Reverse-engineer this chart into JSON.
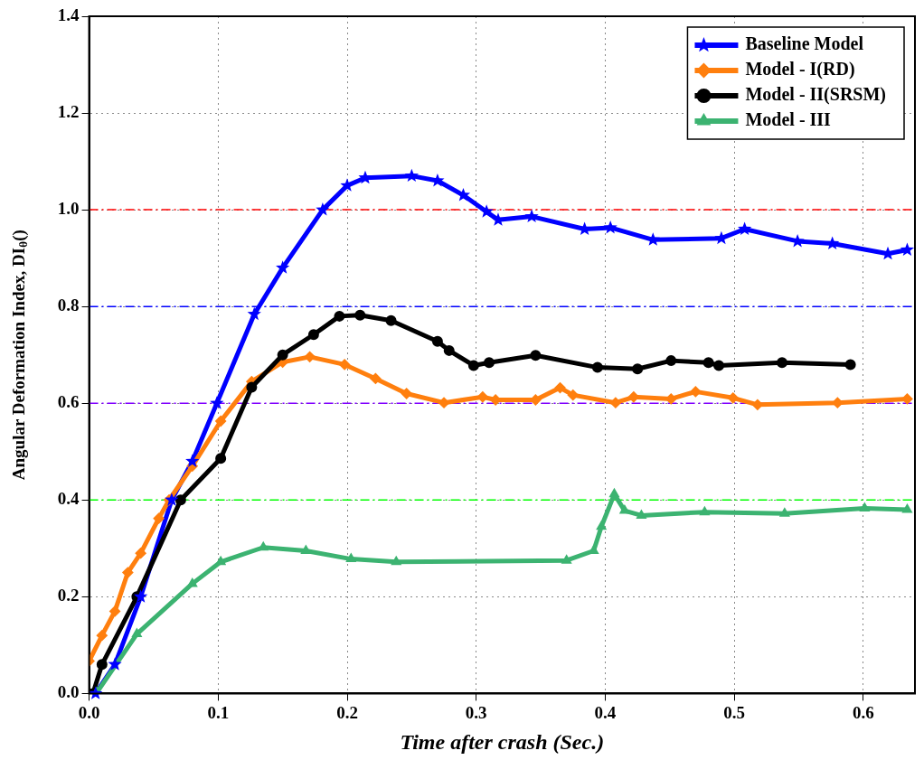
{
  "chart_data": {
    "type": "line",
    "xlabel": "Time after crash (Sec.)",
    "ylabel": "Angular Deformation Index, DI$_{θ}$()",
    "xlim": [
      0,
      0.64
    ],
    "xticks": [
      {
        "value": 0,
        "label": "0.0"
      },
      0.1,
      0.2,
      0.3,
      0.4,
      0.5,
      0.6
    ],
    "ylim": [
      0,
      1.4
    ],
    "yticks": [
      {
        "value": 0,
        "label": "0.0"
      },
      0.2,
      0.4,
      0.6,
      0.8,
      {
        "value": 1,
        "label": "1.0"
      },
      1.2,
      1.4
    ],
    "grid": true,
    "legend": "top right",
    "line_style": "solid",
    "ref_lines": [
      {
        "axis": "y",
        "value": 1,
        "color": "#ff0000",
        "line_style": "dashed"
      },
      {
        "axis": "y",
        "value": 0.8,
        "color": "#0000ff",
        "line_style": "dashed"
      },
      {
        "axis": "y",
        "value": 0.6,
        "color": "#8000ff",
        "line_style": "dashed"
      },
      {
        "axis": "y",
        "value": 0.4,
        "color": "#00ff00",
        "line_style": "dashed"
      }
    ],
    "series": [
      {
        "name": "Baseline Model",
        "color": "#0000ff",
        "marker": "star",
        "x": [
          0.005,
          0.02,
          0.04,
          0.064,
          0.08,
          0.099,
          0.128,
          0.15,
          0.181,
          0.2,
          0.214,
          0.25,
          0.27,
          0.29,
          0.308,
          0.317,
          0.343,
          0.384,
          0.404,
          0.437,
          0.49,
          0.508,
          0.549,
          0.576,
          0.619,
          0.634
        ],
        "values": [
          0,
          0.06,
          0.2,
          0.4,
          0.48,
          0.6,
          0.784,
          0.88,
          1.0,
          1.05,
          1.066,
          1.07,
          1.06,
          1.03,
          0.996,
          0.979,
          0.986,
          0.96,
          0.963,
          0.938,
          0.941,
          0.96,
          0.935,
          0.93,
          0.909,
          0.917
        ]
      },
      {
        "name": "Model - I(RD)",
        "color": "#ff7f0e",
        "marker": "diamond",
        "x": [
          0,
          0.01,
          0.02,
          0.03,
          0.04,
          0.054,
          0.062,
          0.08,
          0.102,
          0.126,
          0.15,
          0.171,
          0.198,
          0.222,
          0.246,
          0.275,
          0.305,
          0.315,
          0.346,
          0.365,
          0.375,
          0.408,
          0.422,
          0.451,
          0.47,
          0.499,
          0.518,
          0.58,
          0.634
        ],
        "values": [
          0.067,
          0.12,
          0.17,
          0.25,
          0.29,
          0.362,
          0.4,
          0.47,
          0.563,
          0.645,
          0.685,
          0.696,
          0.68,
          0.651,
          0.62,
          0.601,
          0.613,
          0.607,
          0.607,
          0.632,
          0.617,
          0.601,
          0.613,
          0.609,
          0.624,
          0.611,
          0.597,
          0.601,
          0.609
        ]
      },
      {
        "name": "Model - II(SRSM)",
        "color": "#000000",
        "marker": "circle",
        "x": [
          0.003,
          0.01,
          0.037,
          0.071,
          0.102,
          0.126,
          0.15,
          0.174,
          0.194,
          0.21,
          0.234,
          0.27,
          0.279,
          0.298,
          0.31,
          0.346,
          0.394,
          0.425,
          0.451,
          0.48,
          0.488,
          0.537,
          0.59
        ],
        "values": [
          0,
          0.06,
          0.2,
          0.4,
          0.486,
          0.633,
          0.7,
          0.742,
          0.78,
          0.782,
          0.771,
          0.728,
          0.709,
          0.678,
          0.684,
          0.699,
          0.674,
          0.671,
          0.688,
          0.684,
          0.678,
          0.684,
          0.68
        ]
      },
      {
        "name": "Model - III",
        "color": "#3cb371",
        "marker": "triangle",
        "x": [
          0.006,
          0.037,
          0.08,
          0.102,
          0.135,
          0.168,
          0.203,
          0.238,
          0.37,
          0.391,
          0.397,
          0.407,
          0.415,
          0.428,
          0.477,
          0.539,
          0.601,
          0.634
        ],
        "values": [
          0.002,
          0.123,
          0.227,
          0.272,
          0.302,
          0.295,
          0.278,
          0.272,
          0.275,
          0.295,
          0.345,
          0.412,
          0.378,
          0.368,
          0.375,
          0.372,
          0.383,
          0.38
        ]
      }
    ]
  }
}
